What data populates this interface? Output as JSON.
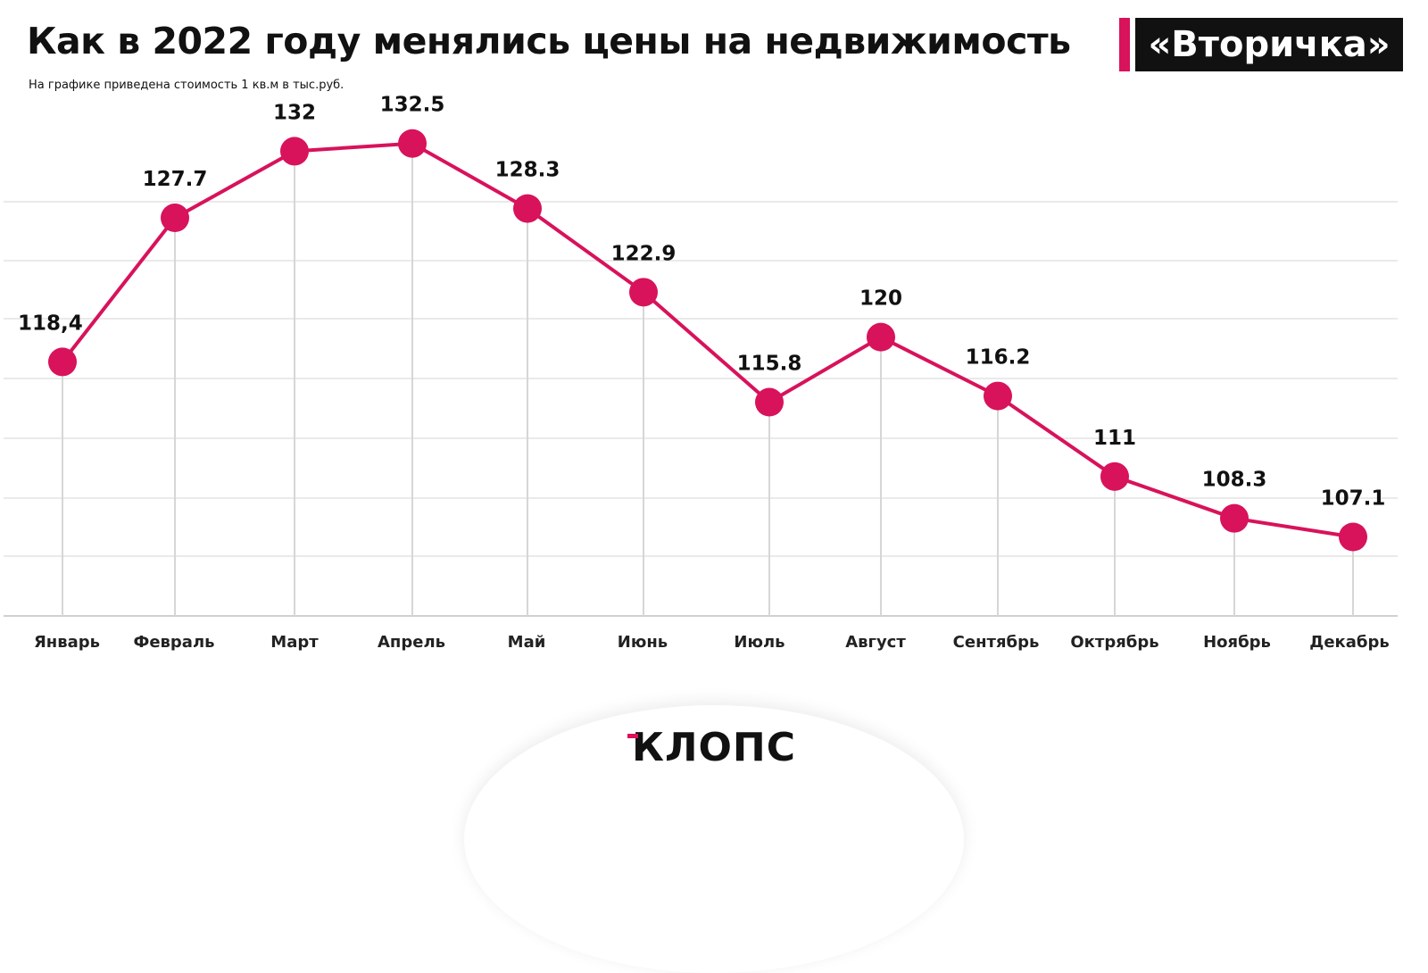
{
  "header": {
    "title": "Как в 2022 году менялись цены на недвижимость",
    "subtitle": "На графике приведена стоимость 1 кв.м в тыс.руб.",
    "badge": "«Вторичка»"
  },
  "logo": {
    "text": "КЛОПС"
  },
  "colors": {
    "accent": "#d8125b",
    "grid": "#e3e3e3",
    "stem": "#d6d6d6"
  },
  "chart_data": {
    "type": "line",
    "categories": [
      "Январь",
      "Февраль",
      "Март",
      "Апрель",
      "Май",
      "Июнь",
      "Июль",
      "Август",
      "Сентябрь",
      "Октрябрь",
      "Ноябрь",
      "Декабрь"
    ],
    "values": [
      118.4,
      127.7,
      132,
      132.5,
      128.3,
      122.9,
      115.8,
      120,
      116.2,
      111,
      108.3,
      107.1
    ],
    "value_labels": [
      "118,4",
      "127.7",
      "132",
      "132.5",
      "128.3",
      "122.9",
      "115.8",
      "120",
      "116.2",
      "111",
      "108.3",
      "107.1"
    ],
    "title": "Как в 2022 году менялись цены на недвижимость",
    "ylim": [
      102,
      136
    ],
    "grid": true,
    "legend": "none"
  }
}
